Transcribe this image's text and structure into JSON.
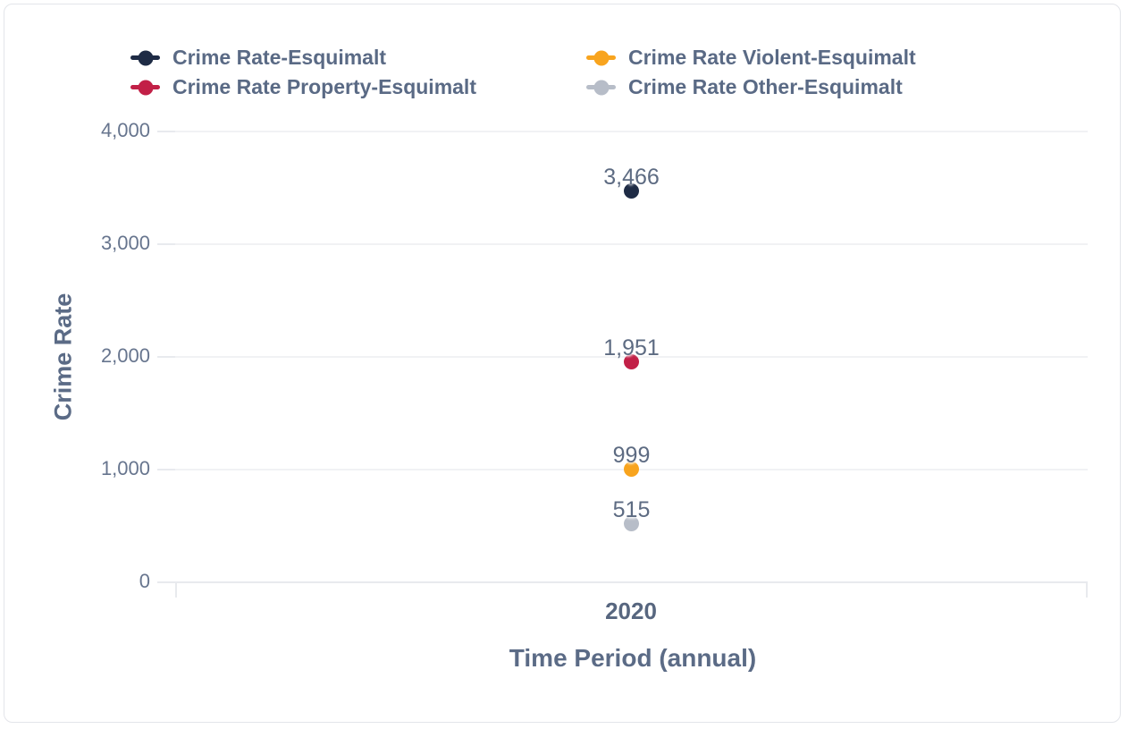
{
  "chart_data": {
    "type": "scatter",
    "title": "",
    "xlabel": "Time Period (annual)",
    "ylabel": "Crime Rate",
    "x_categories": [
      "2020"
    ],
    "ylim": [
      0,
      4000
    ],
    "grid": true,
    "legend_position": "top",
    "yticks": [
      {
        "value": 0,
        "label": "0"
      },
      {
        "value": 1000,
        "label": "1,000"
      },
      {
        "value": 2000,
        "label": "2,000"
      },
      {
        "value": 3000,
        "label": "3,000"
      },
      {
        "value": 4000,
        "label": "4,000"
      }
    ],
    "series": [
      {
        "name": "Crime Rate-Esquimalt",
        "color": "#1e2b45",
        "values": [
          3466
        ],
        "value_label": "3,466"
      },
      {
        "name": "Crime Rate Violent-Esquimalt",
        "color": "#f8a41e",
        "values": [
          999
        ],
        "value_label": "999"
      },
      {
        "name": "Crime Rate Property-Esquimalt",
        "color": "#c22047",
        "values": [
          1951
        ],
        "value_label": "1,951"
      },
      {
        "name": "Crime Rate Other-Esquimalt",
        "color": "#b7bdc8",
        "values": [
          515
        ],
        "value_label": "515"
      }
    ]
  }
}
